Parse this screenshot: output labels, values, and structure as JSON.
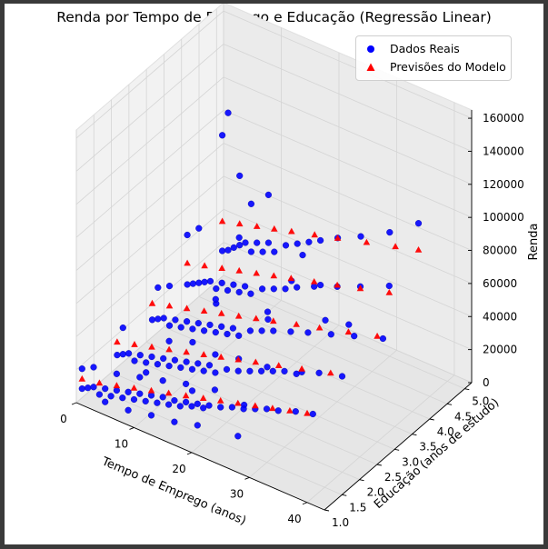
{
  "chart_data": {
    "type": "scatter",
    "title": "Renda por Tempo de Emprego e Educação (Regressão Linear)",
    "xlabel": "Tempo de Emprego (anos)",
    "ylabel": "Educação (anos de estudo)",
    "zlabel": "Renda",
    "xlim": [
      0,
      43
    ],
    "ylim": [
      1,
      5.2
    ],
    "zlim": [
      0,
      165000
    ],
    "xticks": [
      "0",
      "10",
      "20",
      "30",
      "40"
    ],
    "yticks": [
      "1.0",
      "1.5",
      "2.0",
      "2.5",
      "3.0",
      "3.5",
      "4.0",
      "4.5",
      "5.0"
    ],
    "zticks": [
      "0",
      "20000",
      "40000",
      "60000",
      "80000",
      "100000",
      "120000",
      "140000",
      "160000"
    ],
    "grid": true,
    "legend_position": "top-right",
    "series": [
      {
        "name": "Dados Reais",
        "marker": "circle",
        "color": "#0000ff",
        "points": [
          [
            1,
            1,
            10000
          ],
          [
            2,
            1,
            12000
          ],
          [
            3,
            1,
            14000
          ],
          [
            4,
            1,
            11000
          ],
          [
            5,
            1,
            16000
          ],
          [
            6,
            1,
            13000
          ],
          [
            7,
            1,
            18000
          ],
          [
            8,
            1,
            15000
          ],
          [
            9,
            1,
            20000
          ],
          [
            10,
            1,
            17000
          ],
          [
            11,
            1,
            22000
          ],
          [
            12,
            1,
            19000
          ],
          [
            13,
            1,
            24000
          ],
          [
            14,
            1,
            21000
          ],
          [
            15,
            1,
            26000
          ],
          [
            16,
            1,
            23000
          ],
          [
            17,
            1,
            27000
          ],
          [
            18,
            1,
            25000
          ],
          [
            19,
            1,
            29000
          ],
          [
            20,
            1,
            28000
          ],
          [
            21,
            1,
            31000
          ],
          [
            22,
            1,
            30000
          ],
          [
            23,
            1,
            33000
          ],
          [
            25,
            1,
            35000
          ],
          [
            27,
            1,
            38000
          ],
          [
            29,
            1,
            40000
          ],
          [
            31,
            1,
            43000
          ],
          [
            33,
            1,
            46000
          ],
          [
            35,
            1,
            48000
          ],
          [
            38,
            1,
            52000
          ],
          [
            41,
            1,
            55000
          ],
          [
            1,
            1,
            22000
          ],
          [
            3,
            1,
            26000
          ],
          [
            5,
            1,
            8000
          ],
          [
            7,
            1,
            28000
          ],
          [
            9,
            1,
            9000
          ],
          [
            11,
            1,
            32000
          ],
          [
            13,
            1,
            12000
          ],
          [
            15,
            1,
            36000
          ],
          [
            17,
            1,
            14000
          ],
          [
            19,
            1,
            40000
          ],
          [
            21,
            1,
            18000
          ],
          [
            24,
            1,
            44000
          ],
          [
            28,
            1,
            22000
          ],
          [
            1,
            2,
            12000
          ],
          [
            2,
            2,
            14000
          ],
          [
            3,
            2,
            16000
          ],
          [
            4,
            2,
            13000
          ],
          [
            5,
            2,
            18000
          ],
          [
            6,
            2,
            15000
          ],
          [
            7,
            2,
            20000
          ],
          [
            8,
            2,
            17000
          ],
          [
            9,
            2,
            22000
          ],
          [
            10,
            2,
            19000
          ],
          [
            11,
            2,
            24000
          ],
          [
            12,
            2,
            21000
          ],
          [
            13,
            2,
            26000
          ],
          [
            14,
            2,
            23000
          ],
          [
            15,
            2,
            28000
          ],
          [
            16,
            2,
            25000
          ],
          [
            17,
            2,
            30000
          ],
          [
            18,
            2,
            27000
          ],
          [
            20,
            2,
            32000
          ],
          [
            22,
            2,
            34000
          ],
          [
            24,
            2,
            37000
          ],
          [
            26,
            2,
            40000
          ],
          [
            28,
            2,
            43000
          ],
          [
            30,
            2,
            46000
          ],
          [
            33,
            2,
            50000
          ],
          [
            36,
            2,
            54000
          ],
          [
            40,
            2,
            58000
          ],
          [
            2,
            2,
            30000
          ],
          [
            6,
            2,
            9000
          ],
          [
            10,
            2,
            34000
          ],
          [
            14,
            2,
            10000
          ],
          [
            18,
            2,
            38000
          ],
          [
            23,
            2,
            15000
          ],
          [
            27,
            2,
            44000
          ],
          [
            1,
            3,
            15000
          ],
          [
            2,
            3,
            17000
          ],
          [
            3,
            3,
            19000
          ],
          [
            4,
            3,
            16000
          ],
          [
            5,
            3,
            21000
          ],
          [
            6,
            3,
            18000
          ],
          [
            7,
            3,
            23000
          ],
          [
            8,
            3,
            20000
          ],
          [
            9,
            3,
            25000
          ],
          [
            10,
            3,
            22000
          ],
          [
            11,
            3,
            27000
          ],
          [
            12,
            3,
            24000
          ],
          [
            13,
            3,
            29000
          ],
          [
            14,
            3,
            26000
          ],
          [
            15,
            3,
            31000
          ],
          [
            16,
            3,
            28000
          ],
          [
            18,
            3,
            34000
          ],
          [
            20,
            3,
            37000
          ],
          [
            22,
            3,
            40000
          ],
          [
            25,
            3,
            44000
          ],
          [
            28,
            3,
            48000
          ],
          [
            32,
            3,
            53000
          ],
          [
            36,
            3,
            58000
          ],
          [
            41,
            3,
            64000
          ],
          [
            2,
            3,
            36000
          ],
          [
            4,
            3,
            40000
          ],
          [
            8,
            3,
            12000
          ],
          [
            12,
            3,
            44000
          ],
          [
            16,
            3,
            14000
          ],
          [
            21,
            3,
            50000
          ],
          [
            26,
            3,
            20000
          ],
          [
            31,
            3,
            60000
          ],
          [
            1,
            4,
            18000
          ],
          [
            2,
            4,
            20000
          ],
          [
            3,
            4,
            22000
          ],
          [
            4,
            4,
            24000
          ],
          [
            5,
            4,
            26000
          ],
          [
            6,
            4,
            23000
          ],
          [
            7,
            4,
            28000
          ],
          [
            8,
            4,
            25000
          ],
          [
            9,
            4,
            30000
          ],
          [
            10,
            4,
            27000
          ],
          [
            11,
            4,
            32000
          ],
          [
            12,
            4,
            29000
          ],
          [
            14,
            4,
            35000
          ],
          [
            16,
            4,
            38000
          ],
          [
            18,
            4,
            41000
          ],
          [
            20,
            4,
            45000
          ],
          [
            23,
            4,
            50000
          ],
          [
            27,
            4,
            56000
          ],
          [
            31,
            4,
            62000
          ],
          [
            36,
            4,
            70000
          ],
          [
            1,
            4,
            48000
          ],
          [
            3,
            4,
            55000
          ],
          [
            6,
            4,
            14000
          ],
          [
            10,
            4,
            60000
          ],
          [
            15,
            4,
            18000
          ],
          [
            21,
            4,
            66000
          ],
          [
            29,
            4,
            36000
          ],
          [
            1,
            5,
            20000
          ],
          [
            2,
            5,
            22000
          ],
          [
            3,
            5,
            25000
          ],
          [
            4,
            5,
            28000
          ],
          [
            5,
            5,
            31000
          ],
          [
            6,
            5,
            27000
          ],
          [
            7,
            5,
            34000
          ],
          [
            8,
            5,
            30000
          ],
          [
            9,
            5,
            37000
          ],
          [
            10,
            5,
            33000
          ],
          [
            12,
            5,
            40000
          ],
          [
            14,
            5,
            44000
          ],
          [
            16,
            5,
            48000
          ],
          [
            18,
            5,
            52000
          ],
          [
            21,
            5,
            58000
          ],
          [
            25,
            5,
            65000
          ],
          [
            30,
            5,
            75000
          ],
          [
            35,
            5,
            88000
          ],
          [
            1,
            5,
            90000
          ],
          [
            2,
            5,
            105000
          ],
          [
            4,
            5,
            70000
          ],
          [
            6,
            5,
            56000
          ],
          [
            9,
            5,
            66000
          ],
          [
            13,
            5,
            20000
          ],
          [
            18,
            5,
            25000
          ]
        ]
      },
      {
        "name": "Previsões do Modelo",
        "marker": "triangle",
        "color": "#ff0000",
        "points": [
          [
            1,
            1,
            16000
          ],
          [
            4,
            1,
            18000
          ],
          [
            7,
            1,
            21000
          ],
          [
            10,
            1,
            24000
          ],
          [
            13,
            1,
            27000
          ],
          [
            16,
            1,
            30000
          ],
          [
            19,
            1,
            33000
          ],
          [
            22,
            1,
            36000
          ],
          [
            25,
            1,
            39000
          ],
          [
            28,
            1,
            42000
          ],
          [
            31,
            1,
            45000
          ],
          [
            34,
            1,
            48000
          ],
          [
            37,
            1,
            51000
          ],
          [
            40,
            1,
            54000
          ],
          [
            1,
            2,
            20000
          ],
          [
            4,
            2,
            23000
          ],
          [
            7,
            2,
            26000
          ],
          [
            10,
            2,
            29000
          ],
          [
            13,
            2,
            32000
          ],
          [
            16,
            2,
            35000
          ],
          [
            19,
            2,
            38000
          ],
          [
            22,
            2,
            41000
          ],
          [
            25,
            2,
            44000
          ],
          [
            29,
            2,
            48000
          ],
          [
            33,
            2,
            52000
          ],
          [
            38,
            2,
            57000
          ],
          [
            1,
            3,
            25000
          ],
          [
            4,
            3,
            28000
          ],
          [
            7,
            3,
            31000
          ],
          [
            10,
            3,
            34000
          ],
          [
            13,
            3,
            37000
          ],
          [
            16,
            3,
            40000
          ],
          [
            19,
            3,
            43000
          ],
          [
            22,
            3,
            46000
          ],
          [
            26,
            3,
            50000
          ],
          [
            30,
            3,
            54000
          ],
          [
            35,
            3,
            59000
          ],
          [
            40,
            3,
            64000
          ],
          [
            1,
            4,
            31000
          ],
          [
            4,
            4,
            34000
          ],
          [
            7,
            4,
            37000
          ],
          [
            10,
            4,
            40000
          ],
          [
            13,
            4,
            43000
          ],
          [
            16,
            4,
            46000
          ],
          [
            19,
            4,
            49000
          ],
          [
            23,
            4,
            53000
          ],
          [
            27,
            4,
            57000
          ],
          [
            31,
            4,
            61000
          ],
          [
            36,
            4,
            66000
          ],
          [
            1,
            5,
            38000
          ],
          [
            4,
            5,
            41000
          ],
          [
            7,
            5,
            44000
          ],
          [
            10,
            5,
            47000
          ],
          [
            13,
            5,
            50000
          ],
          [
            17,
            5,
            54000
          ],
          [
            21,
            5,
            58000
          ],
          [
            26,
            5,
            63000
          ],
          [
            31,
            5,
            68000
          ],
          [
            35,
            5,
            72000
          ]
        ]
      }
    ]
  }
}
